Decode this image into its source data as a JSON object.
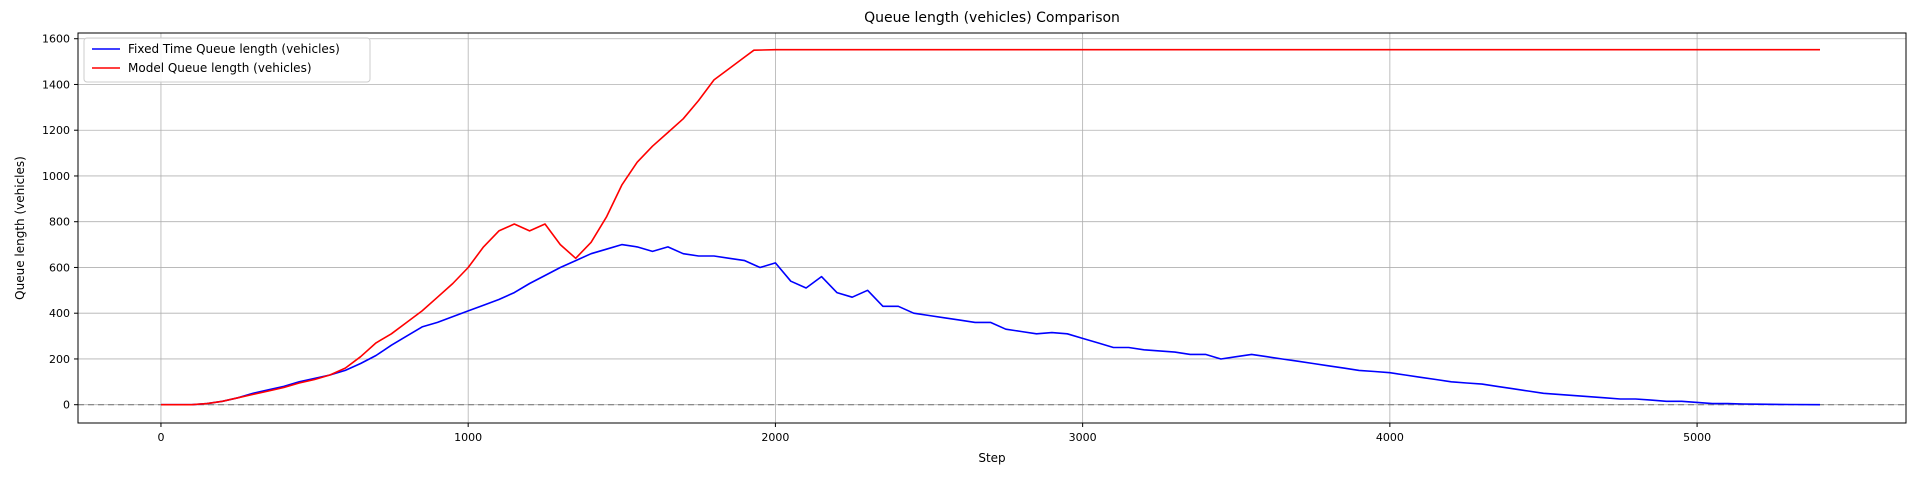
{
  "chart_data": {
    "type": "line",
    "title": "Queue length (vehicles) Comparison",
    "xlabel": "Step",
    "ylabel": "Queue length (vehicles)",
    "xlim": [
      -270,
      5680
    ],
    "ylim": [
      -80,
      1625
    ],
    "xticks": [
      0,
      1000,
      2000,
      3000,
      4000,
      5000
    ],
    "yticks": [
      0,
      200,
      400,
      600,
      800,
      1000,
      1200,
      1400,
      1600
    ],
    "grid": true,
    "legend_position": "top-left",
    "reference_line": {
      "y": 0,
      "style": "dashed",
      "color": "#808080"
    },
    "series": [
      {
        "name": "Fixed Time Queue length (vehicles)",
        "color": "#0000ff",
        "points": [
          [
            0,
            0
          ],
          [
            100,
            0
          ],
          [
            150,
            5
          ],
          [
            200,
            15
          ],
          [
            250,
            30
          ],
          [
            300,
            50
          ],
          [
            350,
            65
          ],
          [
            400,
            80
          ],
          [
            450,
            100
          ],
          [
            500,
            115
          ],
          [
            550,
            130
          ],
          [
            600,
            150
          ],
          [
            650,
            180
          ],
          [
            700,
            215
          ],
          [
            750,
            260
          ],
          [
            800,
            300
          ],
          [
            850,
            340
          ],
          [
            900,
            360
          ],
          [
            950,
            385
          ],
          [
            1000,
            410
          ],
          [
            1050,
            435
          ],
          [
            1100,
            460
          ],
          [
            1150,
            490
          ],
          [
            1200,
            530
          ],
          [
            1250,
            565
          ],
          [
            1300,
            600
          ],
          [
            1350,
            630
          ],
          [
            1400,
            660
          ],
          [
            1450,
            680
          ],
          [
            1500,
            700
          ],
          [
            1550,
            690
          ],
          [
            1600,
            670
          ],
          [
            1650,
            690
          ],
          [
            1700,
            660
          ],
          [
            1750,
            650
          ],
          [
            1800,
            650
          ],
          [
            1850,
            640
          ],
          [
            1900,
            630
          ],
          [
            1950,
            600
          ],
          [
            2000,
            620
          ],
          [
            2050,
            540
          ],
          [
            2100,
            510
          ],
          [
            2150,
            560
          ],
          [
            2200,
            490
          ],
          [
            2250,
            470
          ],
          [
            2300,
            500
          ],
          [
            2350,
            430
          ],
          [
            2400,
            430
          ],
          [
            2450,
            400
          ],
          [
            2500,
            390
          ],
          [
            2550,
            380
          ],
          [
            2600,
            370
          ],
          [
            2650,
            360
          ],
          [
            2700,
            360
          ],
          [
            2750,
            330
          ],
          [
            2800,
            320
          ],
          [
            2850,
            310
          ],
          [
            2900,
            315
          ],
          [
            2950,
            310
          ],
          [
            3000,
            290
          ],
          [
            3050,
            270
          ],
          [
            3100,
            250
          ],
          [
            3150,
            250
          ],
          [
            3200,
            240
          ],
          [
            3250,
            235
          ],
          [
            3300,
            230
          ],
          [
            3350,
            220
          ],
          [
            3400,
            220
          ],
          [
            3450,
            200
          ],
          [
            3500,
            210
          ],
          [
            3550,
            220
          ],
          [
            3600,
            210
          ],
          [
            3650,
            200
          ],
          [
            3700,
            190
          ],
          [
            3750,
            180
          ],
          [
            3800,
            170
          ],
          [
            3850,
            160
          ],
          [
            3900,
            150
          ],
          [
            3950,
            145
          ],
          [
            4000,
            140
          ],
          [
            4050,
            130
          ],
          [
            4100,
            120
          ],
          [
            4150,
            110
          ],
          [
            4200,
            100
          ],
          [
            4250,
            95
          ],
          [
            4300,
            90
          ],
          [
            4350,
            80
          ],
          [
            4400,
            70
          ],
          [
            4450,
            60
          ],
          [
            4500,
            50
          ],
          [
            4550,
            45
          ],
          [
            4600,
            40
          ],
          [
            4650,
            35
          ],
          [
            4700,
            30
          ],
          [
            4750,
            25
          ],
          [
            4800,
            25
          ],
          [
            4850,
            20
          ],
          [
            4900,
            15
          ],
          [
            4950,
            15
          ],
          [
            5000,
            10
          ],
          [
            5050,
            5
          ],
          [
            5100,
            5
          ],
          [
            5150,
            3
          ],
          [
            5200,
            2
          ],
          [
            5300,
            1
          ],
          [
            5400,
            0
          ]
        ]
      },
      {
        "name": "Model Queue length (vehicles)",
        "color": "#ff0000",
        "points": [
          [
            0,
            0
          ],
          [
            100,
            0
          ],
          [
            150,
            5
          ],
          [
            200,
            15
          ],
          [
            250,
            30
          ],
          [
            300,
            45
          ],
          [
            350,
            60
          ],
          [
            400,
            75
          ],
          [
            450,
            95
          ],
          [
            500,
            110
          ],
          [
            550,
            130
          ],
          [
            600,
            160
          ],
          [
            650,
            210
          ],
          [
            700,
            270
          ],
          [
            750,
            310
          ],
          [
            800,
            360
          ],
          [
            850,
            410
          ],
          [
            900,
            470
          ],
          [
            950,
            530
          ],
          [
            1000,
            600
          ],
          [
            1050,
            690
          ],
          [
            1100,
            760
          ],
          [
            1150,
            790
          ],
          [
            1200,
            760
          ],
          [
            1250,
            790
          ],
          [
            1300,
            700
          ],
          [
            1350,
            640
          ],
          [
            1400,
            710
          ],
          [
            1450,
            820
          ],
          [
            1500,
            960
          ],
          [
            1550,
            1060
          ],
          [
            1600,
            1130
          ],
          [
            1650,
            1190
          ],
          [
            1700,
            1250
          ],
          [
            1750,
            1330
          ],
          [
            1800,
            1420
          ],
          [
            1850,
            1470
          ],
          [
            1900,
            1520
          ],
          [
            1930,
            1550
          ],
          [
            2000,
            1552
          ],
          [
            2500,
            1552
          ],
          [
            3000,
            1552
          ],
          [
            3500,
            1552
          ],
          [
            4000,
            1552
          ],
          [
            4500,
            1552
          ],
          [
            5000,
            1552
          ],
          [
            5400,
            1552
          ]
        ]
      }
    ]
  }
}
